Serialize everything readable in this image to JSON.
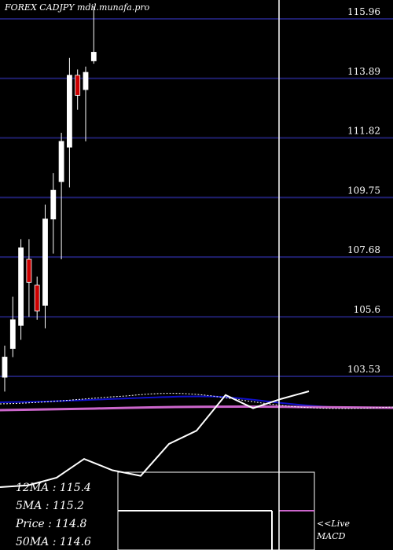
{
  "chart_data": {
    "type": "candlestick",
    "title": "FOREX  CADJPY mdil.munafa.pro",
    "y_ticks": [
      "115.96",
      "113.89",
      "111.82",
      "109.75",
      "107.68",
      "105.6",
      "103.53"
    ],
    "ylim": [
      102.9,
      116.5
    ],
    "candles": [
      {
        "open": 103.5,
        "high": 104.6,
        "low": 103.0,
        "close": 104.2,
        "color": "white"
      },
      {
        "open": 104.5,
        "high": 106.3,
        "low": 104.2,
        "close": 105.5,
        "color": "white"
      },
      {
        "open": 105.3,
        "high": 108.3,
        "low": 104.8,
        "close": 108.0,
        "color": "white"
      },
      {
        "open": 107.6,
        "high": 108.3,
        "low": 105.6,
        "close": 106.8,
        "color": "red"
      },
      {
        "open": 106.7,
        "high": 107.0,
        "low": 105.5,
        "close": 105.8,
        "color": "red"
      },
      {
        "open": 106.0,
        "high": 109.5,
        "low": 105.2,
        "close": 109.0,
        "color": "white"
      },
      {
        "open": 109.0,
        "high": 110.6,
        "low": 107.8,
        "close": 110.0,
        "color": "white"
      },
      {
        "open": 110.3,
        "high": 112.0,
        "low": 107.6,
        "close": 111.7,
        "color": "white"
      },
      {
        "open": 111.5,
        "high": 114.6,
        "low": 110.1,
        "close": 114.0,
        "color": "white"
      },
      {
        "open": 114.0,
        "high": 114.2,
        "low": 112.8,
        "close": 113.3,
        "color": "red"
      },
      {
        "open": 113.5,
        "high": 114.3,
        "low": 111.7,
        "close": 114.1,
        "color": "white"
      },
      {
        "open": 114.5,
        "high": 116.4,
        "low": 114.4,
        "close": 114.8,
        "color": "white"
      }
    ],
    "moving_averages": {
      "ma12": "115.4",
      "ma5": "115.2",
      "price": "114.8",
      "ma50": "114.6"
    },
    "macd_panel": {
      "line_values": [
        3,
        4,
        8,
        18,
        12,
        9,
        26,
        33,
        52,
        45,
        50,
        54
      ],
      "label": "<<Live MACD"
    }
  },
  "labels": {
    "ma12": "12MA : 115.4",
    "ma5": "5MA : 115.2",
    "price": "Price   : 114.8",
    "ma50": "50MA : 114.6",
    "live": "<<Live",
    "macd": "MACD"
  },
  "colors": {
    "background": "#000000",
    "grid": "#1f1f6e",
    "bull": "#ffffff",
    "bear": "#cc0000",
    "ma_blue": "#1010cc",
    "ma_pink": "#cc66cc",
    "cursor": "#ffffff"
  }
}
